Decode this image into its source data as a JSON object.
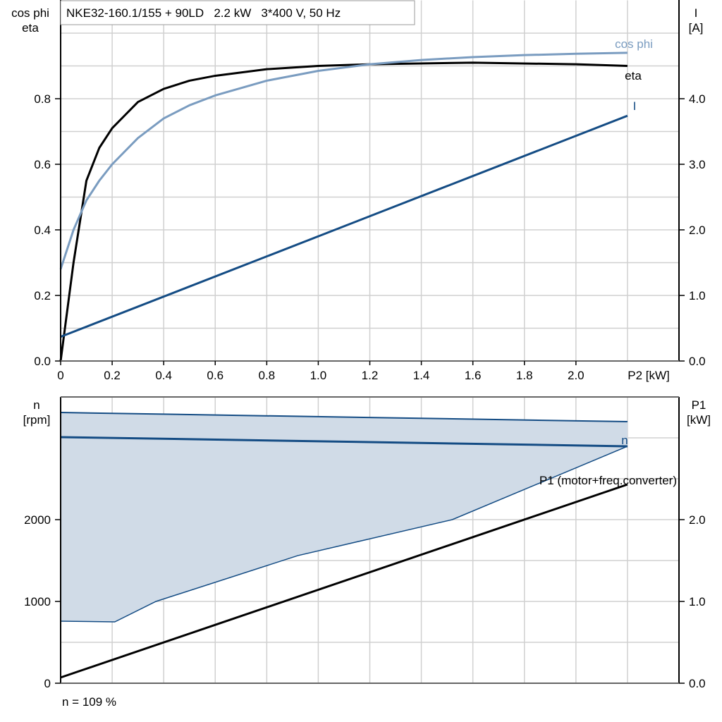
{
  "colors": {
    "eta": "#000000",
    "cos_phi": "#7a9cc0",
    "current": "#144c84",
    "speed": "#144c84",
    "band_fill": "#d0dbe7",
    "p1": "#000000",
    "grid": "#d0d0d0"
  },
  "chart_data": [
    {
      "type": "line",
      "title": "NKE32-160.1/155 + 90LD   2.2 kW   3*400 V, 50 Hz",
      "xlabel": "P2 [kW]",
      "ylabel_left": [
        "cos phi",
        "eta"
      ],
      "ylabel_right": [
        "I",
        "[A]"
      ],
      "xlim": [
        0,
        2.4
      ],
      "ylim_left": [
        0,
        1.1
      ],
      "ylim_right": [
        0,
        5.5
      ],
      "grid": true,
      "x_ticks": [
        "0",
        "0.2",
        "0.4",
        "0.6",
        "0.8",
        "1.0",
        "1.2",
        "1.4",
        "1.6",
        "1.8",
        "2.0"
      ],
      "x_tick_values": [
        0,
        0.2,
        0.4,
        0.6,
        0.8,
        1.0,
        1.2,
        1.4,
        1.6,
        1.8,
        2.0
      ],
      "y_left_ticks": [
        "0.0",
        "0.2",
        "0.4",
        "0.6",
        "0.8"
      ],
      "y_left_tick_values": [
        0,
        0.2,
        0.4,
        0.6,
        0.8
      ],
      "y_right_ticks": [
        "0.0",
        "1.0",
        "2.0",
        "3.0",
        "4.0"
      ],
      "y_right_tick_values": [
        0,
        1,
        2,
        3,
        4
      ],
      "series": [
        {
          "name": "eta",
          "axis": "left",
          "x": [
            0,
            0.05,
            0.1,
            0.15,
            0.2,
            0.25,
            0.3,
            0.4,
            0.5,
            0.6,
            0.8,
            1.0,
            1.2,
            1.6,
            2.0,
            2.2
          ],
          "y": [
            0,
            0.3,
            0.55,
            0.65,
            0.71,
            0.75,
            0.79,
            0.83,
            0.855,
            0.87,
            0.89,
            0.9,
            0.905,
            0.91,
            0.905,
            0.9
          ]
        },
        {
          "name": "cos phi",
          "axis": "left",
          "x": [
            0,
            0.05,
            0.1,
            0.15,
            0.2,
            0.3,
            0.4,
            0.5,
            0.6,
            0.8,
            1.0,
            1.2,
            1.4,
            1.6,
            1.8,
            2.0,
            2.2
          ],
          "y": [
            0.28,
            0.4,
            0.49,
            0.55,
            0.6,
            0.68,
            0.74,
            0.78,
            0.81,
            0.855,
            0.885,
            0.905,
            0.918,
            0.927,
            0.933,
            0.937,
            0.94
          ]
        },
        {
          "name": "I",
          "axis": "right",
          "x": [
            0,
            2.2
          ],
          "y": [
            0.37,
            3.74
          ]
        }
      ]
    },
    {
      "type": "line",
      "ylabel_left": [
        "n",
        "[rpm]"
      ],
      "ylabel_right": [
        "P1",
        "[kW]"
      ],
      "xlim": [
        0,
        2.4
      ],
      "ylim_left": [
        0,
        3500
      ],
      "ylim_right": [
        0,
        3.5
      ],
      "grid": true,
      "y_left_ticks": [
        "0",
        "1000",
        "2000"
      ],
      "y_left_tick_values": [
        0,
        1000,
        2000
      ],
      "y_right_ticks": [
        "0.0",
        "1.0",
        "2.0"
      ],
      "y_right_tick_values": [
        0,
        1,
        2
      ],
      "band": {
        "x_upper": [
          0,
          2.2
        ],
        "upper": [
          3310,
          3198
        ],
        "x_lower": [
          0,
          0.21,
          0.37,
          0.92,
          1.52,
          2.2
        ],
        "lower": [
          759,
          750,
          1000,
          1560,
          2000,
          2897
        ]
      },
      "series": [
        {
          "name": "n",
          "axis": "left",
          "x": [
            0,
            2.2
          ],
          "y": [
            3009,
            2897
          ]
        },
        {
          "name": "P1 (motor+freq.converter)",
          "axis": "right",
          "x": [
            0,
            2.2
          ],
          "y": [
            0.07,
            2.43
          ]
        }
      ],
      "annotation": "n = 109 %"
    }
  ]
}
